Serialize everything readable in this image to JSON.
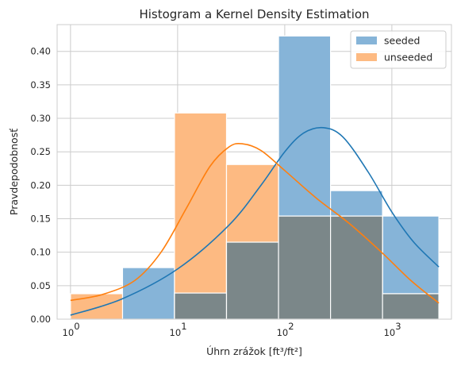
{
  "chart_data": {
    "type": "histogram",
    "title": "Histogram a Kernel Density Estimation",
    "xlabel": "Úhrn zrážok [ft³/ft²]",
    "ylabel": "Pravdepodobnosť",
    "xscale": "log",
    "xlim": [
      0.75,
      3600
    ],
    "ylim": [
      0,
      0.44
    ],
    "yticks": [
      "0.00",
      "0.05",
      "0.10",
      "0.15",
      "0.20",
      "0.25",
      "0.30",
      "0.35",
      "0.40"
    ],
    "xticks": [
      {
        "base": "10",
        "exp": "0",
        "value": 1
      },
      {
        "base": "10",
        "exp": "1",
        "value": 10
      },
      {
        "base": "10",
        "exp": "2",
        "value": 100
      },
      {
        "base": "10",
        "exp": "3",
        "value": 1000
      }
    ],
    "grid": true,
    "legend_position": "top-right",
    "bin_edges": [
      1.0,
      3.06,
      9.35,
      28.6,
      87.5,
      267.6,
      818.4,
      2745.6
    ],
    "series": [
      {
        "name": "seeded",
        "color": "#1f77b4",
        "bar_color": "#86b4d8",
        "values": [
          0.0,
          0.077,
          0.039,
          0.115,
          0.423,
          0.192,
          0.154
        ],
        "kde": [
          [
            1.0,
            0.006
          ],
          [
            3.0,
            0.03
          ],
          [
            10.0,
            0.075
          ],
          [
            30.0,
            0.14
          ],
          [
            60.0,
            0.2
          ],
          [
            100.0,
            0.25
          ],
          [
            150.0,
            0.278
          ],
          [
            230.0,
            0.286
          ],
          [
            350.0,
            0.272
          ],
          [
            600.0,
            0.22
          ],
          [
            1000.0,
            0.16
          ],
          [
            1600.0,
            0.115
          ],
          [
            2745.6,
            0.078
          ]
        ]
      },
      {
        "name": "unseeded",
        "color": "#ff7f0e",
        "bar_color": "#fdba82",
        "values": [
          0.038,
          0.0,
          0.308,
          0.231,
          0.154,
          0.154,
          0.038
        ],
        "kde": [
          [
            1.0,
            0.028
          ],
          [
            2.0,
            0.037
          ],
          [
            4.0,
            0.058
          ],
          [
            7.0,
            0.1
          ],
          [
            12.0,
            0.165
          ],
          [
            20.0,
            0.228
          ],
          [
            30.0,
            0.257
          ],
          [
            40.0,
            0.262
          ],
          [
            60.0,
            0.252
          ],
          [
            100.0,
            0.222
          ],
          [
            200.0,
            0.18
          ],
          [
            400.0,
            0.143
          ],
          [
            800.0,
            0.1
          ],
          [
            1500.0,
            0.058
          ],
          [
            2745.6,
            0.024
          ]
        ]
      }
    ],
    "overlap_color": "#7b8789"
  }
}
